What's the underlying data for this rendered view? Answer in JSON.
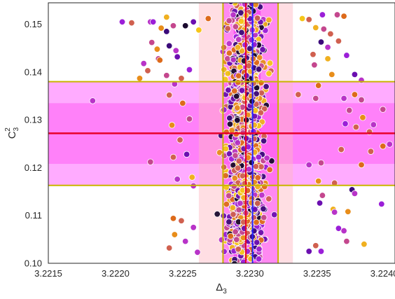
{
  "chart_data": {
    "type": "scatter",
    "xlabel_base": "Δ",
    "xlabel_sub": "3",
    "ylabel_base": "C",
    "ylabel_sup": "2",
    "ylabel_sub": "3",
    "xlim": [
      3.2215,
      3.22408
    ],
    "ylim": [
      0.1,
      0.1545
    ],
    "xticks": [
      3.2215,
      3.222,
      3.2225,
      3.223,
      3.2235,
      3.224
    ],
    "xtick_labels": [
      "3.2215",
      "3.2220",
      "3.2225",
      "3.2230",
      "3.2235",
      "3.2240"
    ],
    "yticks": [
      0.1,
      0.11,
      0.12,
      0.13,
      0.14,
      0.15
    ],
    "ytick_labels": [
      "0.10",
      "0.11",
      "0.12",
      "0.13",
      "0.14",
      "0.15"
    ],
    "grid": false,
    "vertical_bands": [
      {
        "x0": 3.22262,
        "x1": 3.22332,
        "color": "#ffb6c1",
        "opacity": 0.45
      },
      {
        "x0": 3.2228,
        "x1": 3.22321,
        "color": "#ff33ff",
        "opacity": 0.5
      },
      {
        "x0": 3.22288,
        "x1": 3.22308,
        "color": "#ee00ee",
        "opacity": 0.4
      }
    ],
    "horizontal_bands": [
      {
        "y0": 0.1163,
        "y1": 0.138,
        "color": "#ff66ff",
        "opacity": 0.55
      },
      {
        "y0": 0.1208,
        "y1": 0.1335,
        "color": "#ff33ee",
        "opacity": 0.35
      }
    ],
    "vlines": [
      {
        "x": 3.2228,
        "color": "#c8b400",
        "width": 2
      },
      {
        "x": 3.22321,
        "color": "#c8b400",
        "width": 2
      },
      {
        "x": 3.22297,
        "color": "#e8002a",
        "width": 2
      },
      {
        "x": 3.22302,
        "color": "#2222ff",
        "width": 2
      }
    ],
    "hlines": [
      {
        "y": 0.1163,
        "color": "#c8b400",
        "width": 2
      },
      {
        "y": 0.138,
        "color": "#c8b400",
        "width": 2
      },
      {
        "y": 0.1272,
        "color": "#e8002a",
        "width": 2.5
      }
    ],
    "palette": [
      "#1a0a2e",
      "#3b0a7a",
      "#6b0fb0",
      "#9b1fd8",
      "#b833c8",
      "#c4478e",
      "#d0604f",
      "#dd6a1a",
      "#e88d1a",
      "#f0b020",
      "#f5c518"
    ],
    "series": [
      {
        "points": [
          [
            3.22205,
            0.1505,
            3
          ],
          [
            3.22212,
            0.1503,
            6
          ],
          [
            3.22226,
            0.1505,
            4
          ],
          [
            3.22228,
            0.1505,
            3
          ],
          [
            3.22234,
            0.1492,
            8
          ],
          [
            3.22238,
            0.1515,
            9
          ],
          [
            3.22243,
            0.1497,
            5
          ],
          [
            3.22238,
            0.1485,
            1
          ],
          [
            3.22252,
            0.1497,
            0
          ],
          [
            3.22258,
            0.1505,
            2
          ],
          [
            3.22262,
            0.1488,
            10
          ],
          [
            3.22269,
            0.1512,
            7
          ],
          [
            3.22227,
            0.1462,
            5
          ],
          [
            3.22231,
            0.1448,
            8
          ],
          [
            3.2224,
            0.1455,
            1
          ],
          [
            3.22245,
            0.1445,
            4
          ],
          [
            3.22246,
            0.1432,
            2
          ],
          [
            3.22232,
            0.1428,
            5
          ],
          [
            3.22221,
            0.1418,
            4
          ],
          [
            3.22233,
            0.1425,
            7
          ],
          [
            3.22218,
            0.1387,
            8
          ],
          [
            3.22224,
            0.1403,
            6
          ],
          [
            3.22238,
            0.1393,
            5
          ],
          [
            3.22249,
            0.1387,
            6
          ],
          [
            3.22255,
            0.1405,
            3
          ],
          [
            3.22244,
            0.1375,
            4
          ],
          [
            3.22183,
            0.134,
            4
          ],
          [
            3.2224,
            0.1352,
            6
          ],
          [
            3.2225,
            0.1335,
            7
          ],
          [
            3.22242,
            0.1289,
            8
          ],
          [
            3.22255,
            0.1302,
            5
          ],
          [
            3.22248,
            0.1258,
            6
          ],
          [
            3.22243,
            0.1222,
            6
          ],
          [
            3.22253,
            0.1228,
            2
          ],
          [
            3.22226,
            0.1212,
            5
          ],
          [
            3.22257,
            0.118,
            9
          ],
          [
            3.22246,
            0.1176,
            4
          ],
          [
            3.22258,
            0.1162,
            4
          ],
          [
            3.22243,
            0.1094,
            7
          ],
          [
            3.22249,
            0.1089,
            6
          ],
          [
            3.22258,
            0.1075,
            4
          ],
          [
            3.22244,
            0.106,
            8
          ],
          [
            3.2224,
            0.1032,
            6
          ],
          [
            3.22252,
            0.1046,
            4
          ],
          [
            3.22261,
            0.1023,
            4
          ],
          [
            3.22339,
            0.1512,
            10
          ],
          [
            3.22344,
            0.151,
            6
          ],
          [
            3.22349,
            0.1493,
            9
          ],
          [
            3.22354,
            0.152,
            3
          ],
          [
            3.22365,
            0.152,
            5
          ],
          [
            3.2237,
            0.1517,
            7
          ],
          [
            3.22355,
            0.149,
            5
          ],
          [
            3.2236,
            0.148,
            6
          ],
          [
            3.22366,
            0.1465,
            6
          ],
          [
            3.22353,
            0.1463,
            1
          ],
          [
            3.22358,
            0.1452,
            4
          ],
          [
            3.22347,
            0.1437,
            6
          ],
          [
            3.22348,
            0.1415,
            5
          ],
          [
            3.22358,
            0.1428,
            9
          ],
          [
            3.22372,
            0.1435,
            3
          ],
          [
            3.22361,
            0.1395,
            8
          ],
          [
            3.22378,
            0.1395,
            2
          ],
          [
            3.22383,
            0.1383,
            4
          ],
          [
            3.22351,
            0.1372,
            7
          ],
          [
            3.22336,
            0.1353,
            6
          ],
          [
            3.22349,
            0.1345,
            5
          ],
          [
            3.2237,
            0.1345,
            4
          ],
          [
            3.22378,
            0.1353,
            7
          ],
          [
            3.22383,
            0.1342,
            5
          ],
          [
            3.22399,
            0.1322,
            5
          ],
          [
            3.22374,
            0.132,
            5
          ],
          [
            3.22384,
            0.1305,
            8
          ],
          [
            3.22371,
            0.1292,
            3
          ],
          [
            3.22379,
            0.1285,
            6
          ],
          [
            3.22392,
            0.129,
            4
          ],
          [
            3.22389,
            0.1275,
            6
          ],
          [
            3.22399,
            0.1245,
            7
          ],
          [
            3.22404,
            0.1249,
            4
          ],
          [
            3.2239,
            0.1234,
            6
          ],
          [
            3.22368,
            0.1238,
            6
          ],
          [
            3.22353,
            0.121,
            5
          ],
          [
            3.22383,
            0.1206,
            7
          ],
          [
            3.22344,
            0.1206,
            4
          ],
          [
            3.22351,
            0.1172,
            8
          ],
          [
            3.22363,
            0.1168,
            6
          ],
          [
            3.22376,
            0.1154,
            1
          ],
          [
            3.22378,
            0.1146,
            4
          ],
          [
            3.22354,
            0.1142,
            5
          ],
          [
            3.22352,
            0.1126,
            2
          ],
          [
            3.22362,
            0.1113,
            9
          ],
          [
            3.22363,
            0.1107,
            4
          ],
          [
            3.22373,
            0.1108,
            8
          ],
          [
            3.22398,
            0.1124,
            3
          ],
          [
            3.22366,
            0.1073,
            3
          ],
          [
            3.2237,
            0.1068,
            4
          ],
          [
            3.22372,
            0.1046,
            5
          ],
          [
            3.22385,
            0.104,
            9
          ],
          [
            3.22349,
            0.1037,
            6
          ],
          [
            3.22344,
            0.1025,
            2
          ],
          [
            3.22353,
            0.1025,
            3
          ]
        ]
      }
    ]
  }
}
